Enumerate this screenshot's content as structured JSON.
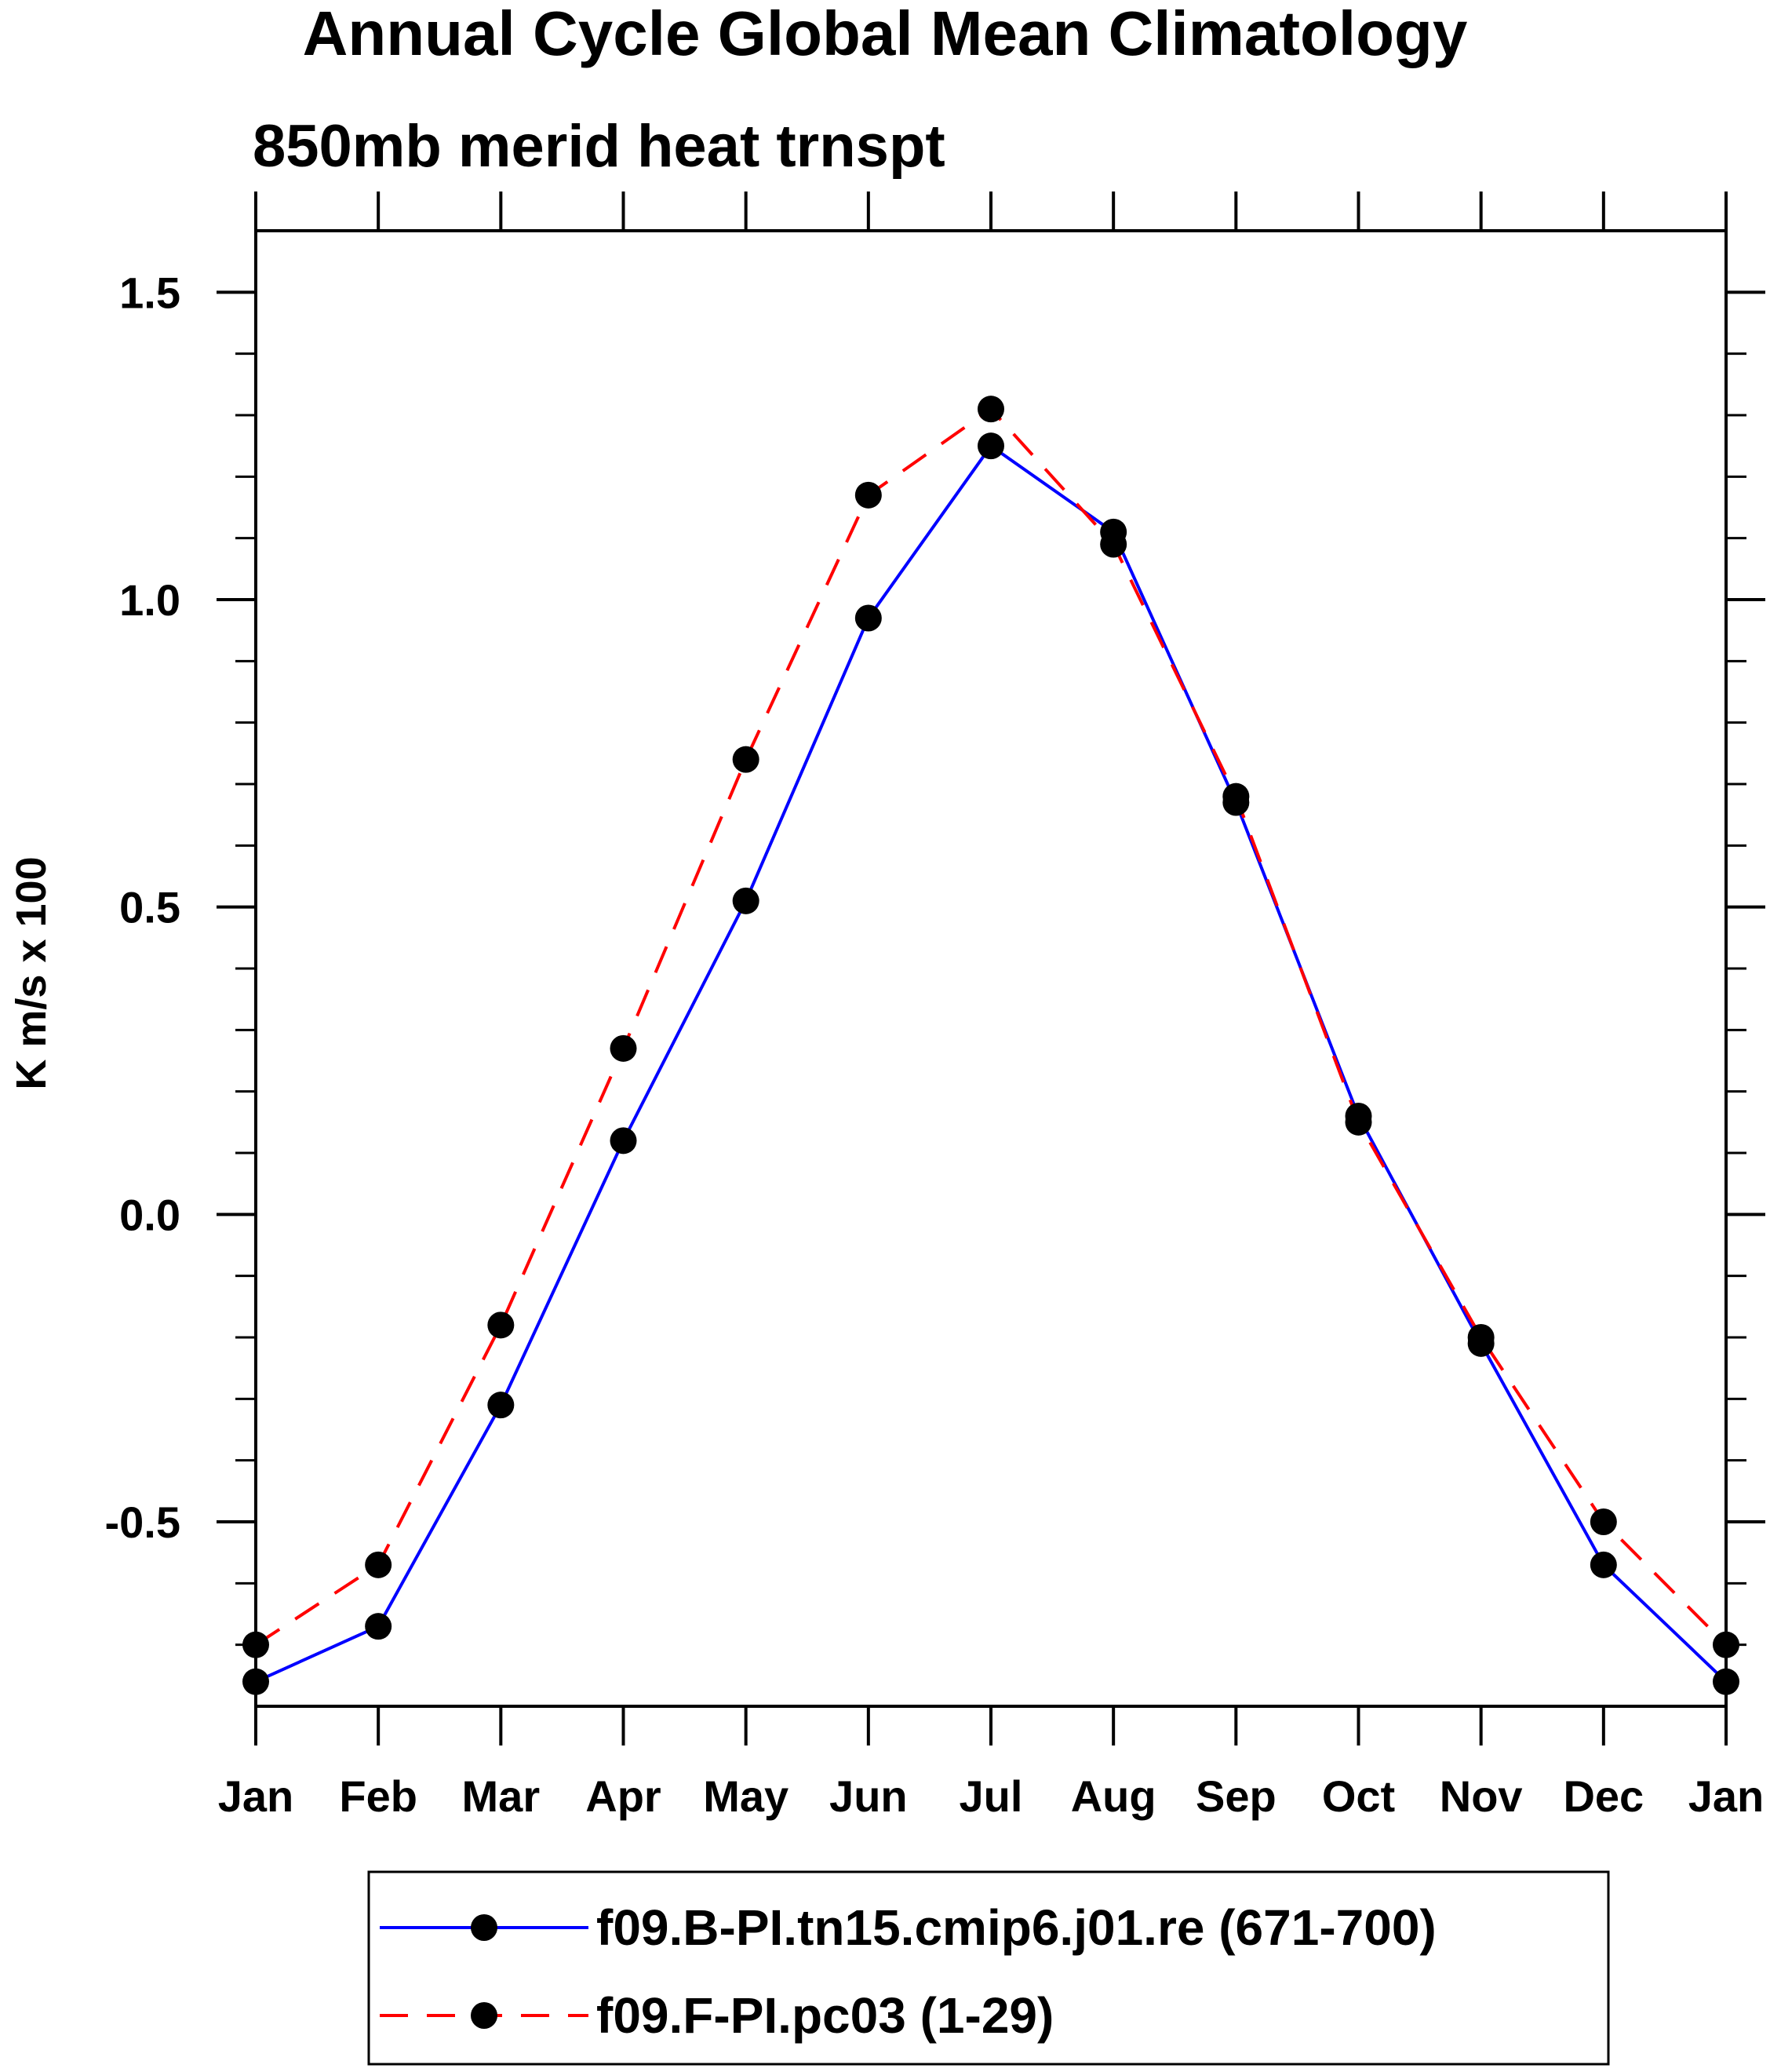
{
  "chart_data": {
    "type": "line",
    "title": "Annual Cycle Global Mean Climatology",
    "subtitle": "850mb merid heat trnspt",
    "xlabel": "",
    "ylabel": "K m/s x 100",
    "categories": [
      "Jan",
      "Feb",
      "Mar",
      "Apr",
      "May",
      "Jun",
      "Jul",
      "Aug",
      "Sep",
      "Oct",
      "Nov",
      "Dec",
      "Jan"
    ],
    "ylim": [
      -0.8,
      1.6
    ],
    "yticks": [
      -0.5,
      0.0,
      0.5,
      1.0,
      1.5
    ],
    "ytick_labels": [
      "-0.5",
      "0.0",
      "0.5",
      "1.0",
      "1.5"
    ],
    "grid": false,
    "legend_position": "bottom",
    "series": [
      {
        "name": "f09.B-PI.tn15.cmip6.j01.re (671-700)",
        "color": "#0000ff",
        "line_style": "solid",
        "marker": "filled-circle",
        "values": [
          -0.76,
          -0.67,
          -0.31,
          0.12,
          0.51,
          0.97,
          1.25,
          1.11,
          0.67,
          0.16,
          -0.21,
          -0.57,
          -0.76
        ]
      },
      {
        "name": "f09.F-PI.pc03 (1-29)",
        "color": "#ff0000",
        "line_style": "dashed",
        "marker": "filled-circle",
        "values": [
          -0.7,
          -0.57,
          -0.18,
          0.27,
          0.74,
          1.17,
          1.31,
          1.09,
          0.68,
          0.15,
          -0.2,
          -0.5,
          -0.7
        ]
      }
    ]
  }
}
